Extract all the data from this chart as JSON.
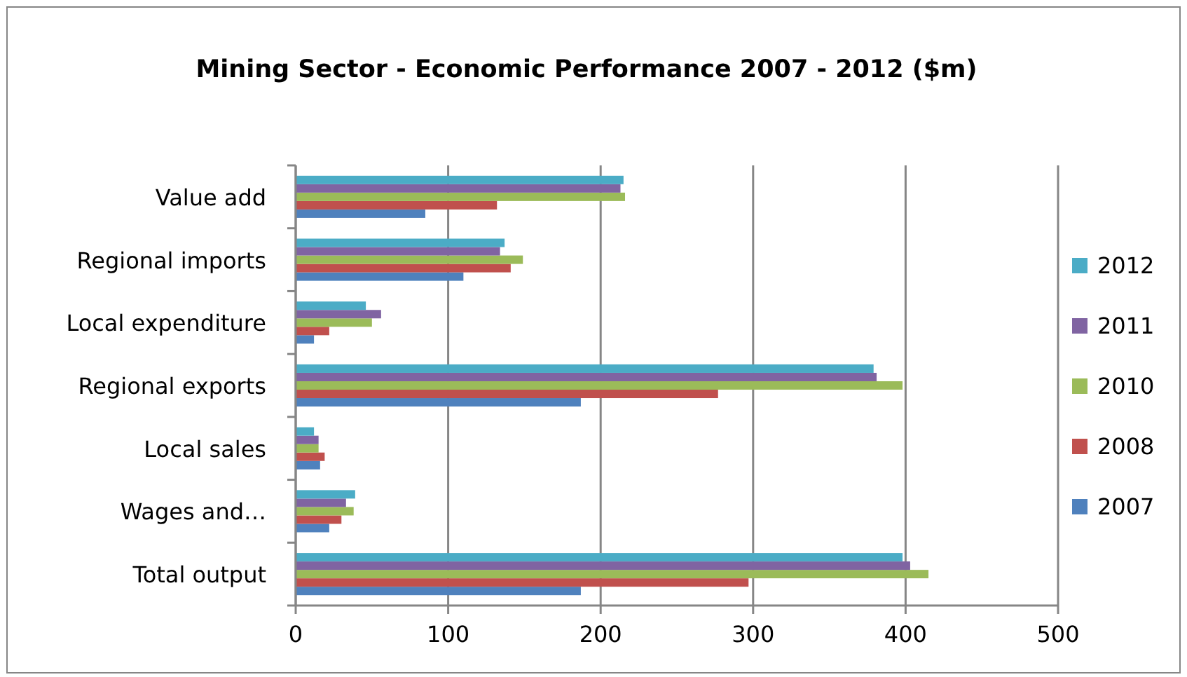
{
  "chart_data": {
    "type": "bar",
    "orientation": "horizontal",
    "title": "Mining Sector - Economic Performance 2007 - 2012 ($m)",
    "categories": [
      "Value add",
      "Regional imports",
      "Local expenditure",
      "Regional exports",
      "Local sales",
      "Wages and…",
      "Total output"
    ],
    "series": [
      {
        "name": "2007",
        "color": "#4f81bd",
        "values": [
          85,
          110,
          12,
          187,
          16,
          22,
          187
        ]
      },
      {
        "name": "2008",
        "color": "#c0504d",
        "values": [
          132,
          141,
          22,
          277,
          19,
          30,
          297
        ]
      },
      {
        "name": "2010",
        "color": "#9bbb59",
        "values": [
          216,
          149,
          50,
          398,
          15,
          38,
          415
        ]
      },
      {
        "name": "2011",
        "color": "#8064a2",
        "values": [
          213,
          134,
          56,
          381,
          15,
          33,
          403
        ]
      },
      {
        "name": "2012",
        "color": "#4bacc6",
        "values": [
          215,
          137,
          46,
          379,
          12,
          39,
          398
        ]
      }
    ],
    "xlim": [
      0,
      500
    ],
    "xticks": [
      0,
      100,
      200,
      300,
      400,
      500
    ],
    "grid": "x",
    "legend": "right"
  }
}
